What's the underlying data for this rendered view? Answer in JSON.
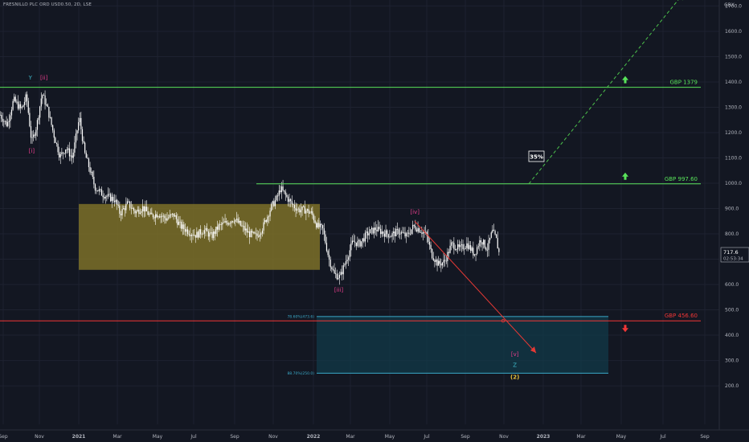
{
  "header": {
    "symbol_line": "FRESNILLO PLC ORD USD0.50, 2D, LSE",
    "currency": "GBX"
  },
  "price_tag": {
    "value": "717.6",
    "countdown": "02:53:34"
  },
  "colors": {
    "background": "#131722",
    "grid": "#1e2230",
    "candle": "#ffffff",
    "resistance": "#58e35a",
    "support": "#f23636",
    "box_consolidation": "#7d7028",
    "box_target": "#123a48",
    "fib": "#3aa9c8",
    "wave_pink": "#e63d8c",
    "wave_cyan": "#3fb9c9",
    "wave_yellow": "#e8c33a",
    "projection": "#4cc24c",
    "down_arrow": "#e53935"
  },
  "chart_data": {
    "type": "candlestick",
    "y_axis": {
      "ylim": [
        175,
        1790
      ],
      "ticks": [
        "200.0",
        "300.0",
        "400.0",
        "500.0",
        "600.0",
        "700.0",
        "800.0",
        "900.0",
        "1000.0",
        "1100.0",
        "1200.0",
        "1300.0",
        "1400.0",
        "1500.0",
        "1600.0",
        "1700.0"
      ]
    },
    "x_axis": {
      "labels": [
        "Sep",
        "Nov",
        "2021",
        "Mar",
        "May",
        "Jul",
        "Sep",
        "Nov",
        "2022",
        "Mar",
        "May",
        "Jul",
        "Sep",
        "Nov",
        "2023",
        "Mar",
        "May",
        "Jul",
        "Sep"
      ]
    },
    "close_path": [
      [
        "2020-09-01",
        1270
      ],
      [
        "2020-09-12",
        1230
      ],
      [
        "2020-09-22",
        1330
      ],
      [
        "2020-10-04",
        1290
      ],
      [
        "2020-10-12",
        1345
      ],
      [
        "2020-10-20",
        1160
      ],
      [
        "2020-10-28",
        1230
      ],
      [
        "2020-11-05",
        1355
      ],
      [
        "2020-11-14",
        1290
      ],
      [
        "2020-11-24",
        1185
      ],
      [
        "2020-12-03",
        1105
      ],
      [
        "2020-12-12",
        1140
      ],
      [
        "2020-12-22",
        1100
      ],
      [
        "2021-01-02",
        1260
      ],
      [
        "2021-01-10",
        1120
      ],
      [
        "2021-01-18",
        1055
      ],
      [
        "2021-01-26",
        985
      ],
      [
        "2021-02-05",
        960
      ],
      [
        "2021-02-16",
        945
      ],
      [
        "2021-02-26",
        935
      ],
      [
        "2021-03-06",
        880
      ],
      [
        "2021-03-18",
        920
      ],
      [
        "2021-03-30",
        885
      ],
      [
        "2021-04-10",
        905
      ],
      [
        "2021-04-22",
        870
      ],
      [
        "2021-05-04",
        880
      ],
      [
        "2021-05-16",
        860
      ],
      [
        "2021-05-28",
        875
      ],
      [
        "2021-06-08",
        830
      ],
      [
        "2021-06-20",
        810
      ],
      [
        "2021-07-02",
        795
      ],
      [
        "2021-07-14",
        815
      ],
      [
        "2021-07-26",
        790
      ],
      [
        "2021-08-06",
        830
      ],
      [
        "2021-08-18",
        845
      ],
      [
        "2021-08-30",
        860
      ],
      [
        "2021-09-10",
        830
      ],
      [
        "2021-09-22",
        800
      ],
      [
        "2021-10-04",
        790
      ],
      [
        "2021-10-14",
        830
      ],
      [
        "2021-10-26",
        905
      ],
      [
        "2021-11-04",
        940
      ],
      [
        "2021-11-10",
        980
      ],
      [
        "2021-11-18",
        950
      ],
      [
        "2021-11-28",
        915
      ],
      [
        "2021-12-08",
        895
      ],
      [
        "2021-12-18",
        895
      ],
      [
        "2021-12-28",
        880
      ],
      [
        "2022-01-06",
        830
      ],
      [
        "2022-01-14",
        820
      ],
      [
        "2022-01-24",
        700
      ],
      [
        "2022-02-01",
        640
      ],
      [
        "2022-02-10",
        630
      ],
      [
        "2022-02-20",
        700
      ],
      [
        "2022-03-02",
        770
      ],
      [
        "2022-03-12",
        760
      ],
      [
        "2022-03-24",
        800
      ],
      [
        "2022-04-06",
        820
      ],
      [
        "2022-04-18",
        805
      ],
      [
        "2022-04-30",
        795
      ],
      [
        "2022-05-12",
        810
      ],
      [
        "2022-05-24",
        790
      ],
      [
        "2022-06-04",
        830
      ],
      [
        "2022-06-12",
        820
      ],
      [
        "2022-06-24",
        795
      ],
      [
        "2022-07-02",
        720
      ],
      [
        "2022-07-12",
        680
      ],
      [
        "2022-07-22",
        690
      ],
      [
        "2022-08-02",
        760
      ],
      [
        "2022-08-14",
        740
      ],
      [
        "2022-08-26",
        760
      ],
      [
        "2022-09-06",
        720
      ],
      [
        "2022-09-16",
        780
      ],
      [
        "2022-09-26",
        740
      ],
      [
        "2022-10-04",
        810
      ],
      [
        "2022-10-10",
        780
      ],
      [
        "2022-10-15",
        717.6
      ]
    ],
    "levels": [
      {
        "label": "GBP 1379",
        "price": 1379
      },
      {
        "label": "GBP 997.60",
        "price": 997.6
      },
      {
        "label": "GBP 456.60",
        "price": 456.6
      }
    ],
    "fib_levels": [
      {
        "label": "78.60%(473.6)",
        "price": 473.6
      },
      {
        "label": "88.70%(250.0)",
        "price": 250.0
      }
    ],
    "wave_labels": [
      {
        "text": "Y",
        "color": "cyan",
        "date": "2020-10-18",
        "price": 1410
      },
      {
        "text": "[ii]",
        "color": "pink",
        "date": "2020-11-08",
        "price": 1410
      },
      {
        "text": "[i]",
        "color": "pink",
        "date": "2020-10-20",
        "price": 1120
      },
      {
        "text": "[iii]",
        "color": "pink",
        "date": "2022-02-08",
        "price": 572
      },
      {
        "text": "[iv]",
        "color": "pink",
        "date": "2022-06-06",
        "price": 880
      },
      {
        "text": "[v]",
        "color": "pink",
        "date": "2022-11-08",
        "price": 318
      },
      {
        "text": "Z",
        "color": "cyan",
        "date": "2022-11-08",
        "price": 275
      },
      {
        "text": "(2)",
        "color": "yellow",
        "date": "2022-11-08",
        "price": 228
      }
    ],
    "projection_label": "35%"
  }
}
